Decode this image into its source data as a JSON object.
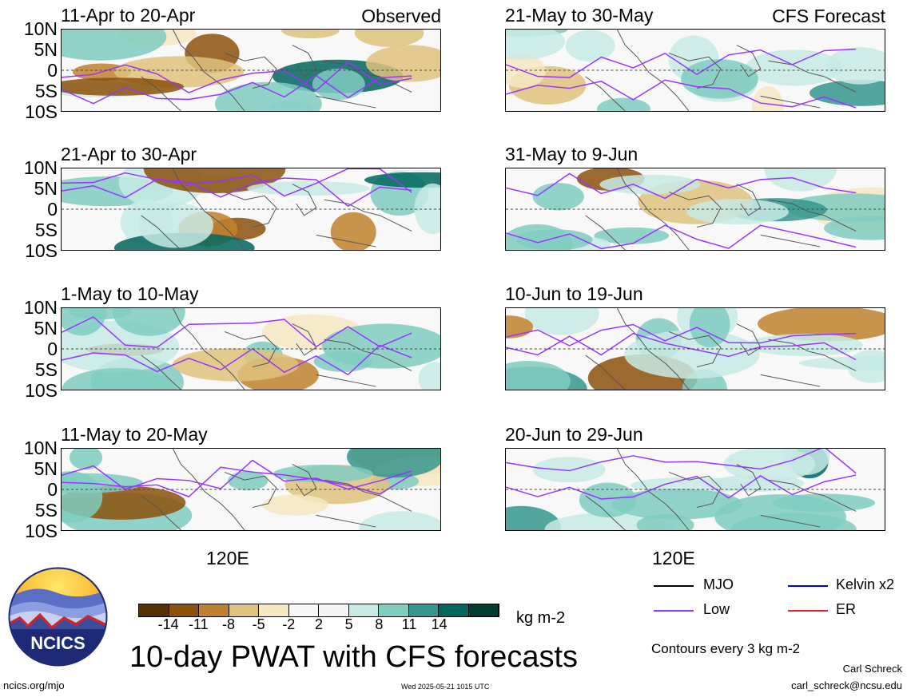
{
  "panels": [
    {
      "title": "11-Apr to 20-Apr",
      "tag": "Observed",
      "left": true
    },
    {
      "title": "21-May to 30-May",
      "tag": "CFS Forecast",
      "left": false
    },
    {
      "title": "21-Apr to 30-Apr",
      "tag": "",
      "left": true
    },
    {
      "title": "31-May to 9-Jun",
      "tag": "",
      "left": false
    },
    {
      "title": "1-May to 10-May",
      "tag": "",
      "left": true
    },
    {
      "title": "10-Jun to 19-Jun",
      "tag": "",
      "left": false
    },
    {
      "title": "11-May to 20-May",
      "tag": "",
      "left": true
    },
    {
      "title": "20-Jun to 29-Jun",
      "tag": "",
      "left": false
    }
  ],
  "lat_labels": [
    "10N",
    "5N",
    "0",
    "5S",
    "10S"
  ],
  "lon_label": "120E",
  "colorbar": {
    "colors": [
      "#543005",
      "#8c510a",
      "#bf812d",
      "#dfc27d",
      "#f6e8c3",
      "#f7f7f7",
      "#f5f5f5",
      "#c7eae5",
      "#80cdc1",
      "#35978f",
      "#01665e",
      "#003c30"
    ],
    "tick_labels": [
      "-14",
      "-11",
      "-8",
      "-5",
      "-2",
      "2",
      "5",
      "8",
      "11",
      "14"
    ],
    "units": "kg m-2"
  },
  "legend": {
    "items": [
      {
        "label": "MJO",
        "color": "#000000"
      },
      {
        "label": "Kelvin x2",
        "color": "#0000cc"
      },
      {
        "label": "Low",
        "color": "#9933ff"
      },
      {
        "label": "ER",
        "color": "#ee2222"
      }
    ],
    "contour_note": "Contours every 3 kg m-2"
  },
  "title": "10-day PWAT with CFS forecasts",
  "footer": {
    "site": "ncics.org/mjo",
    "timestamp": "Wed 2025-05-21 1015 UTC",
    "author": "Carl Schreck",
    "email": "carl_schreck@ncsu.edu"
  },
  "logo_text": "NCICS"
}
